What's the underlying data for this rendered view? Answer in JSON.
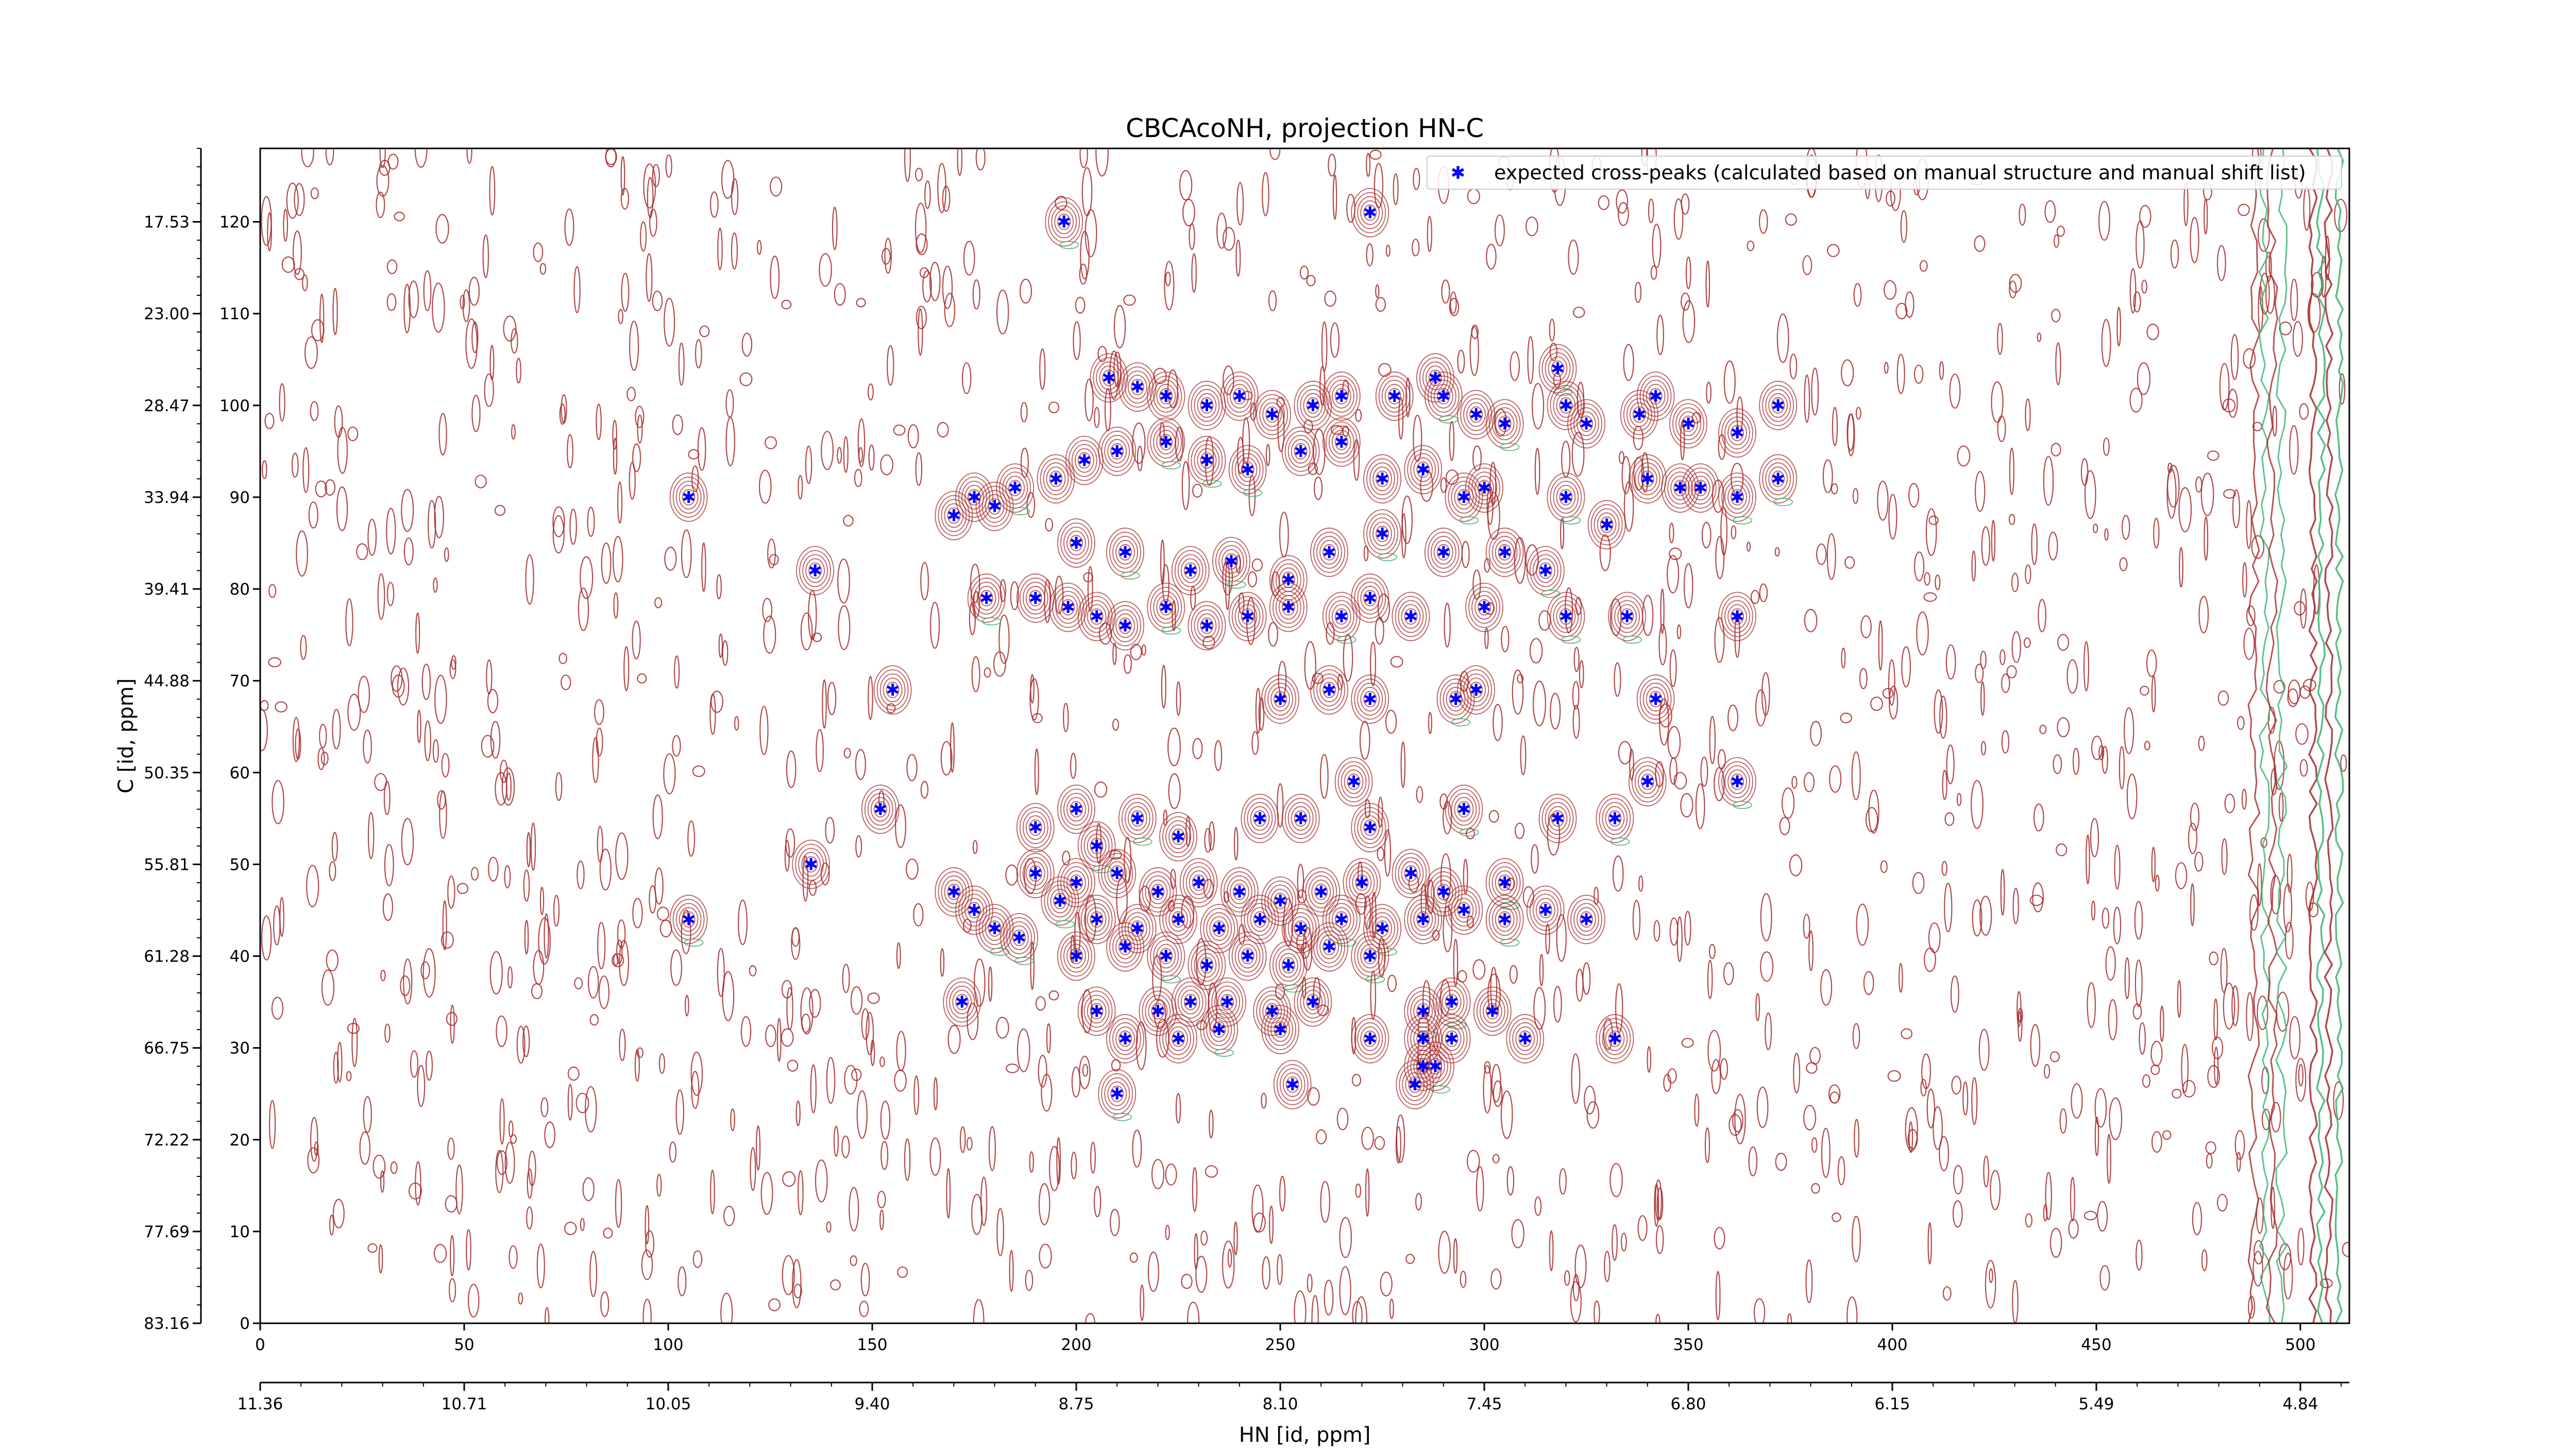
{
  "chart_data": {
    "type": "scatter",
    "title": "CBCAcoNH, projection HN-C",
    "xlabel": "HN [id, ppm]",
    "ylabel": "C [id, ppm]",
    "xlim": [
      0,
      512
    ],
    "ylim": [
      0,
      128
    ],
    "x_ticks": [
      0,
      50,
      100,
      150,
      200,
      250,
      300,
      350,
      400,
      450,
      500
    ],
    "y_ticks": [
      0,
      10,
      20,
      30,
      40,
      50,
      60,
      70,
      80,
      90,
      100,
      110,
      120
    ],
    "x_secondary_ticks": [
      {
        "pos": 0,
        "label": "11.36"
      },
      {
        "pos": 50,
        "label": "10.71"
      },
      {
        "pos": 100,
        "label": "10.05"
      },
      {
        "pos": 150,
        "label": "9.40"
      },
      {
        "pos": 200,
        "label": "8.75"
      },
      {
        "pos": 250,
        "label": "8.10"
      },
      {
        "pos": 300,
        "label": "7.45"
      },
      {
        "pos": 350,
        "label": "6.80"
      },
      {
        "pos": 400,
        "label": "6.15"
      },
      {
        "pos": 450,
        "label": "5.49"
      },
      {
        "pos": 500,
        "label": "4.84"
      }
    ],
    "y_secondary_ticks": [
      {
        "pos": 0,
        "label": "83.16"
      },
      {
        "pos": 10,
        "label": "77.69"
      },
      {
        "pos": 20,
        "label": "72.22"
      },
      {
        "pos": 30,
        "label": "66.75"
      },
      {
        "pos": 40,
        "label": "61.28"
      },
      {
        "pos": 50,
        "label": "55.81"
      },
      {
        "pos": 60,
        "label": "50.35"
      },
      {
        "pos": 70,
        "label": "44.88"
      },
      {
        "pos": 80,
        "label": "39.41"
      },
      {
        "pos": 90,
        "label": "33.94"
      },
      {
        "pos": 100,
        "label": "28.47"
      },
      {
        "pos": 110,
        "label": "23.00"
      },
      {
        "pos": 120,
        "label": "17.53"
      }
    ],
    "legend": {
      "position": "top-right",
      "label": "expected cross-peaks (calculated based on manual structure and manual shift list)"
    },
    "colors": {
      "peak_marker": "#0000ff",
      "positive_contour": "#a52a2a",
      "negative_contour": "#3cb371"
    },
    "series": [
      {
        "name": "expected cross-peaks (calculated based on manual structure and manual shift list)",
        "points": [
          [
            197,
            120
          ],
          [
            272,
            121
          ],
          [
            105,
            90
          ],
          [
            136,
            82
          ],
          [
            155,
            69
          ],
          [
            152,
            56
          ],
          [
            135,
            50
          ],
          [
            105,
            44
          ],
          [
            208,
            103
          ],
          [
            215,
            102
          ],
          [
            222,
            101
          ],
          [
            232,
            100
          ],
          [
            240,
            101
          ],
          [
            248,
            99
          ],
          [
            258,
            100
          ],
          [
            265,
            101
          ],
          [
            278,
            101
          ],
          [
            290,
            101
          ],
          [
            298,
            99
          ],
          [
            305,
            98
          ],
          [
            318,
            104
          ],
          [
            320,
            100
          ],
          [
            325,
            98
          ],
          [
            338,
            99
          ],
          [
            342,
            101
          ],
          [
            350,
            98
          ],
          [
            362,
            97
          ],
          [
            372,
            100
          ],
          [
            288,
            103
          ],
          [
            170,
            88
          ],
          [
            175,
            90
          ],
          [
            180,
            89
          ],
          [
            185,
            91
          ],
          [
            195,
            92
          ],
          [
            202,
            94
          ],
          [
            210,
            95
          ],
          [
            222,
            96
          ],
          [
            232,
            94
          ],
          [
            242,
            93
          ],
          [
            255,
            95
          ],
          [
            265,
            96
          ],
          [
            275,
            92
          ],
          [
            285,
            93
          ],
          [
            295,
            90
          ],
          [
            300,
            91
          ],
          [
            320,
            90
          ],
          [
            340,
            92
          ],
          [
            348,
            91
          ],
          [
            353,
            91
          ],
          [
            362,
            90
          ],
          [
            372,
            92
          ],
          [
            200,
            85
          ],
          [
            212,
            84
          ],
          [
            228,
            82
          ],
          [
            238,
            83
          ],
          [
            252,
            81
          ],
          [
            262,
            84
          ],
          [
            275,
            86
          ],
          [
            290,
            84
          ],
          [
            305,
            84
          ],
          [
            315,
            82
          ],
          [
            330,
            87
          ],
          [
            178,
            79
          ],
          [
            190,
            79
          ],
          [
            198,
            78
          ],
          [
            205,
            77
          ],
          [
            212,
            76
          ],
          [
            222,
            78
          ],
          [
            232,
            76
          ],
          [
            242,
            77
          ],
          [
            252,
            78
          ],
          [
            265,
            77
          ],
          [
            272,
            79
          ],
          [
            282,
            77
          ],
          [
            300,
            78
          ],
          [
            320,
            77
          ],
          [
            335,
            77
          ],
          [
            362,
            77
          ],
          [
            250,
            68
          ],
          [
            262,
            69
          ],
          [
            272,
            68
          ],
          [
            293,
            68
          ],
          [
            298,
            69
          ],
          [
            342,
            68
          ],
          [
            268,
            59
          ],
          [
            295,
            56
          ],
          [
            318,
            55
          ],
          [
            332,
            55
          ],
          [
            340,
            59
          ],
          [
            362,
            59
          ],
          [
            190,
            54
          ],
          [
            200,
            56
          ],
          [
            205,
            52
          ],
          [
            215,
            55
          ],
          [
            225,
            53
          ],
          [
            245,
            55
          ],
          [
            255,
            55
          ],
          [
            272,
            54
          ],
          [
            190,
            49
          ],
          [
            200,
            48
          ],
          [
            210,
            49
          ],
          [
            220,
            47
          ],
          [
            230,
            48
          ],
          [
            240,
            47
          ],
          [
            250,
            46
          ],
          [
            260,
            47
          ],
          [
            270,
            48
          ],
          [
            282,
            49
          ],
          [
            290,
            47
          ],
          [
            305,
            48
          ],
          [
            170,
            47
          ],
          [
            175,
            45
          ],
          [
            180,
            43
          ],
          [
            186,
            42
          ],
          [
            196,
            46
          ],
          [
            205,
            44
          ],
          [
            215,
            43
          ],
          [
            225,
            44
          ],
          [
            235,
            43
          ],
          [
            245,
            44
          ],
          [
            255,
            43
          ],
          [
            265,
            44
          ],
          [
            275,
            43
          ],
          [
            285,
            44
          ],
          [
            295,
            45
          ],
          [
            305,
            44
          ],
          [
            315,
            45
          ],
          [
            325,
            44
          ],
          [
            200,
            40
          ],
          [
            212,
            41
          ],
          [
            222,
            40
          ],
          [
            232,
            39
          ],
          [
            242,
            40
          ],
          [
            252,
            39
          ],
          [
            262,
            41
          ],
          [
            272,
            40
          ],
          [
            172,
            35
          ],
          [
            205,
            34
          ],
          [
            220,
            34
          ],
          [
            228,
            35
          ],
          [
            237,
            35
          ],
          [
            248,
            34
          ],
          [
            258,
            35
          ],
          [
            285,
            34
          ],
          [
            292,
            35
          ],
          [
            302,
            34
          ],
          [
            225,
            31
          ],
          [
            235,
            32
          ],
          [
            250,
            32
          ],
          [
            272,
            31
          ],
          [
            285,
            31
          ],
          [
            292,
            31
          ],
          [
            310,
            31
          ],
          [
            332,
            31
          ],
          [
            212,
            31
          ],
          [
            285,
            28
          ],
          [
            288,
            28
          ],
          [
            283,
            26
          ],
          [
            210,
            25
          ],
          [
            253,
            26
          ]
        ]
      }
    ]
  }
}
